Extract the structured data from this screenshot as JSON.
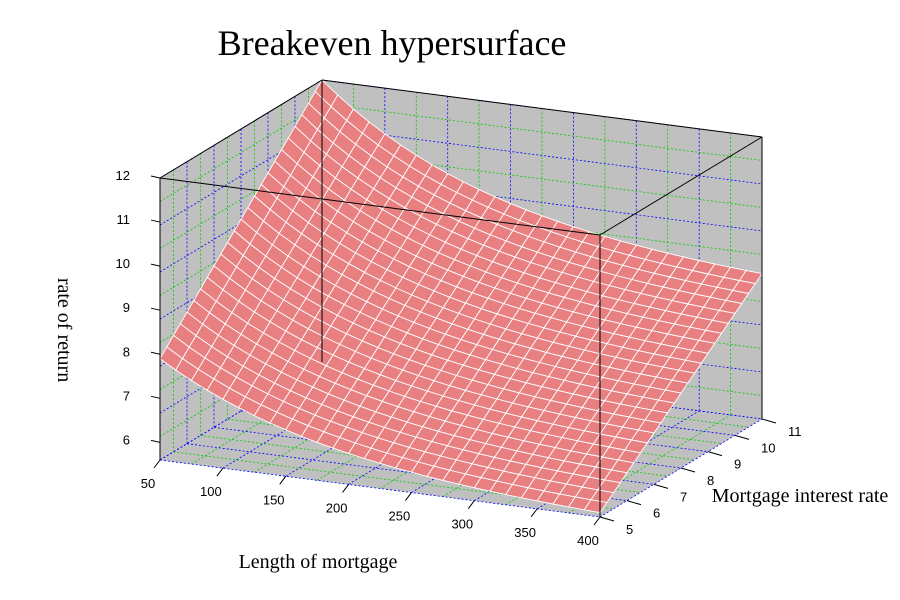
{
  "chart_data": {
    "type": "surface",
    "title": "Breakeven hypersurface",
    "xlabel": "Length of mortgage",
    "ylabel": "Mortgage interest rate",
    "zlabel": "rate of return",
    "xlim": [
      50,
      400
    ],
    "ylim": [
      5,
      11
    ],
    "zlim": [
      5.6,
      12
    ],
    "x_ticks": [
      "50",
      "100",
      "150",
      "200",
      "250",
      "300",
      "350",
      "400"
    ],
    "y_ticks": [
      "5",
      "6",
      "7",
      "8",
      "9",
      "10",
      "11"
    ],
    "z_ticks": [
      "6",
      "7",
      "8",
      "9",
      "10",
      "11",
      "12"
    ],
    "corner_values": {
      "x50_y5": 7.9,
      "x400_y5": 5.7,
      "x50_y11": 12.0,
      "x400_y11": 8.9
    },
    "surface_color": "#e87f80",
    "mesh_color": "#ffffff",
    "wall_color": "#c0c0c0",
    "grid_colors": [
      "#0000ff",
      "#00cc00"
    ],
    "grid": true
  }
}
